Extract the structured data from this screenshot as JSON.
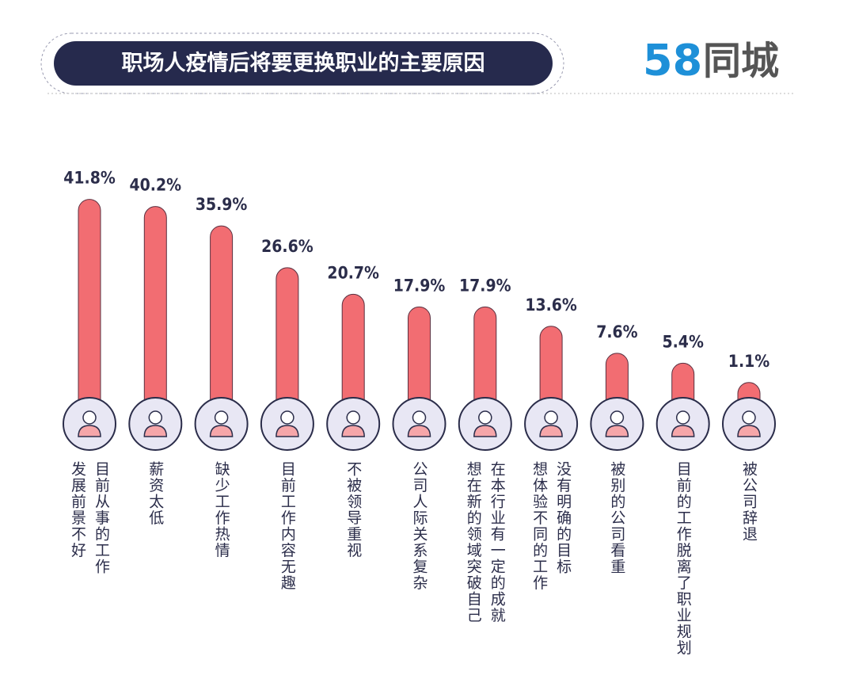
{
  "chart_data": {
    "type": "bar",
    "title": "职场人疫情后将要更换职业的主要原因",
    "logo_digits": "58",
    "logo_text": "同城",
    "color": "#f26d72",
    "categories": [
      [
        "目前从事的工作",
        "发展前景不好"
      ],
      [
        "薪资太低"
      ],
      [
        "缺少工作热情"
      ],
      [
        "目前工作内容无趣"
      ],
      [
        "不被领导重视"
      ],
      [
        "公司人际关系复杂"
      ],
      [
        "在本行业有一定的成就",
        "想在新的领域突破自己"
      ],
      [
        "没有明确的目标",
        "想体验不同的工作"
      ],
      [
        "被别的公司看重"
      ],
      [
        "目前的工作脱离了职业规划"
      ],
      [
        "被公司辞退"
      ]
    ],
    "values": [
      41.8,
      40.2,
      35.9,
      26.6,
      20.7,
      17.9,
      17.9,
      13.6,
      7.6,
      5.4,
      1.1
    ],
    "value_labels": [
      "41.8%",
      "40.2%",
      "35.9%",
      "26.6%",
      "20.7%",
      "17.9%",
      "17.9%",
      "13.6%",
      "7.6%",
      "5.4%",
      "1.1%"
    ]
  }
}
